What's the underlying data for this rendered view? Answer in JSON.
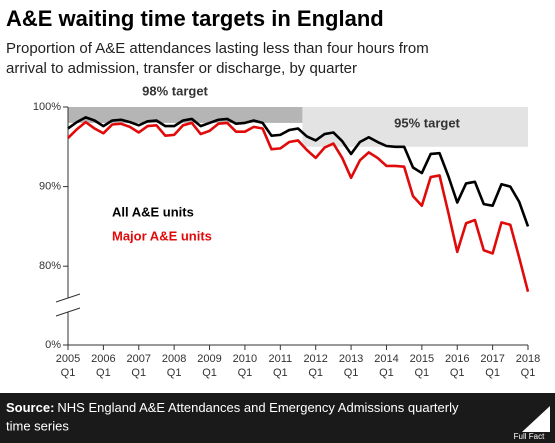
{
  "chart_data": {
    "type": "line",
    "title": "A&E waiting time targets in England",
    "subtitle": [
      "Proportion of A&E attendances lasting less than four hours from",
      "arrival to admission, transfer or discharge, by quarter"
    ],
    "x": [
      2005,
      2005.25,
      2005.5,
      2005.75,
      2006,
      2006.25,
      2006.5,
      2006.75,
      2007,
      2007.25,
      2007.5,
      2007.75,
      2008,
      2008.25,
      2008.5,
      2008.75,
      2009,
      2009.25,
      2009.5,
      2009.75,
      2010,
      2010.25,
      2010.5,
      2010.75,
      2011,
      2011.25,
      2011.5,
      2011.75,
      2012,
      2012.25,
      2012.5,
      2012.75,
      2013,
      2013.25,
      2013.5,
      2013.75,
      2014,
      2014.25,
      2014.5,
      2014.75,
      2015,
      2015.25,
      2015.5,
      2015.75,
      2016,
      2016.25,
      2016.5,
      2016.75,
      2017,
      2017.25,
      2017.5,
      2017.75,
      2018
    ],
    "series": [
      {
        "name": "All A&E units",
        "color": "#000000",
        "values": [
          97.3,
          98.1,
          98.7,
          98.3,
          97.6,
          98.3,
          98.4,
          98.1,
          97.7,
          98.2,
          98.3,
          97.6,
          97.6,
          98.3,
          98.5,
          97.6,
          98.0,
          98.4,
          98.5,
          97.9,
          98.0,
          98.3,
          98.0,
          96.4,
          96.5,
          97.1,
          97.3,
          96.3,
          95.8,
          96.6,
          96.8,
          95.7,
          94.1,
          95.6,
          96.2,
          95.6,
          95.1,
          95.0,
          95.0,
          92.4,
          91.7,
          94.1,
          94.2,
          91.3,
          88.0,
          90.4,
          90.6,
          87.8,
          87.6,
          90.3,
          90.0,
          88.1,
          85.0
        ]
      },
      {
        "name": "Major A&E units",
        "color": "#e10a0a",
        "values": [
          96.1,
          97.2,
          98.1,
          97.3,
          96.7,
          97.8,
          97.9,
          97.5,
          96.8,
          97.6,
          97.7,
          96.4,
          96.5,
          97.7,
          98.0,
          96.6,
          97.0,
          97.9,
          98.0,
          96.9,
          96.9,
          97.5,
          97.3,
          94.7,
          94.8,
          95.6,
          95.8,
          94.6,
          93.6,
          94.9,
          95.4,
          93.6,
          91.1,
          93.3,
          94.3,
          93.6,
          92.6,
          92.6,
          92.5,
          88.8,
          87.6,
          91.2,
          91.4,
          86.7,
          81.8,
          85.4,
          85.8,
          82.0,
          81.6,
          85.5,
          85.2,
          81.1,
          76.8
        ]
      }
    ],
    "targets": [
      {
        "label": "98% target",
        "value": 98,
        "start": 2005,
        "end": 2011.625,
        "color": "#b5b5b5"
      },
      {
        "label": "95% target",
        "value": 95,
        "start": 2011.625,
        "end": 2018,
        "color": "#e3e3e3"
      }
    ],
    "xlim": [
      2005,
      2018
    ],
    "xticks": [
      2005,
      2006,
      2007,
      2008,
      2009,
      2010,
      2011,
      2012,
      2013,
      2014,
      2015,
      2016,
      2017,
      2018
    ],
    "xtick_sublabel": "Q1",
    "ylim": [
      0,
      100
    ],
    "y_break": [
      0,
      75
    ],
    "yticks": [
      {
        "value": 0,
        "label": "0%"
      },
      {
        "value": 80,
        "label": "80%"
      },
      {
        "value": 90,
        "label": "90%"
      },
      {
        "value": 100,
        "label": "100%"
      }
    ],
    "source_label": "Source:",
    "source": [
      "NHS England A&E Attendances and Emergency Admissions quarterly",
      "time series"
    ],
    "logo": "Full Fact"
  }
}
